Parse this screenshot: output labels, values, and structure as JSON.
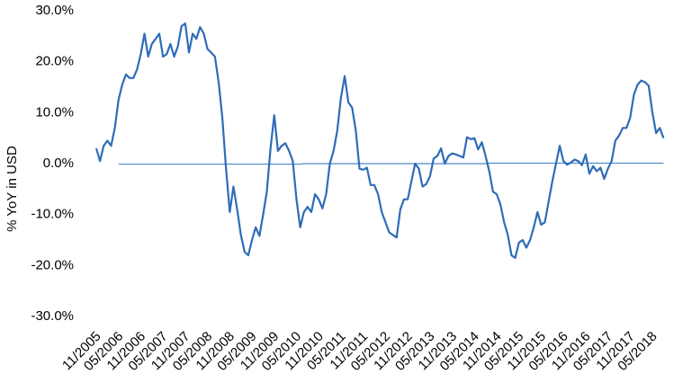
{
  "chart_data": {
    "type": "line",
    "y_label": "% YoY in USD",
    "categories": [
      "11/2005",
      null,
      null,
      null,
      null,
      null,
      "05/2006",
      null,
      null,
      null,
      null,
      null,
      "11/2006",
      null,
      null,
      null,
      null,
      null,
      "05/2007",
      null,
      null,
      null,
      null,
      null,
      "11/2007",
      null,
      null,
      null,
      null,
      null,
      "05/2008",
      null,
      null,
      null,
      null,
      null,
      "11/2008",
      null,
      null,
      null,
      null,
      null,
      "05/2009",
      null,
      null,
      null,
      null,
      null,
      "11/2009",
      null,
      null,
      null,
      null,
      null,
      "05/2010",
      null,
      null,
      null,
      null,
      null,
      "11/2010",
      null,
      null,
      null,
      null,
      null,
      "05/2011",
      null,
      null,
      null,
      null,
      null,
      "11/2011",
      null,
      null,
      null,
      null,
      null,
      "05/2012",
      null,
      null,
      null,
      null,
      null,
      "11/2012",
      null,
      null,
      null,
      null,
      null,
      "05/2013",
      null,
      null,
      null,
      null,
      null,
      "11/2013",
      null,
      null,
      null,
      null,
      null,
      "05/2014",
      null,
      null,
      null,
      null,
      null,
      "11/2014",
      null,
      null,
      null,
      null,
      null,
      "05/2015",
      null,
      null,
      null,
      null,
      null,
      "11/2015",
      null,
      null,
      null,
      null,
      null,
      "05/2016",
      null,
      null,
      null,
      null,
      null,
      "11/2016",
      null,
      null,
      null,
      null,
      null,
      "05/2017",
      null,
      null,
      null,
      null,
      null,
      "11/2017",
      null,
      null,
      null,
      null,
      null,
      "05/2018",
      null,
      null,
      null
    ],
    "series": [
      {
        "color": "#2e6cb8",
        "width": 2.2,
        "values": [
          3,
          0.5,
          3.5,
          4.5,
          3.5,
          7,
          12.5,
          15.5,
          17.5,
          16.8,
          16.8,
          18.5,
          21.5,
          25.5,
          21,
          23.5,
          24.5,
          25.5,
          21,
          21.5,
          23.5,
          21,
          23,
          27,
          27.5,
          21.8,
          25.5,
          24.5,
          26.8,
          25.5,
          22.5,
          21.8,
          21,
          16,
          9,
          -1,
          -9.5,
          -4.5,
          -9,
          -14,
          -17.3,
          -18,
          -15,
          -12.5,
          -14.2,
          -10,
          -5.5,
          3,
          9.5,
          2.5,
          3.5,
          4,
          2.5,
          0.5,
          -7,
          -12.5,
          -9.5,
          -8.5,
          -9.5,
          -6,
          -7,
          -8.8,
          -6,
          0,
          2.5,
          6.5,
          13,
          17.2,
          12,
          11,
          6.5,
          -1,
          -1.2,
          -0.8,
          -4.2,
          -4.2,
          -6,
          -9.5,
          -11.5,
          -13.5,
          -14,
          -14.5,
          -9,
          -7,
          -7,
          -3.5,
          0,
          -1,
          -4.5,
          -4,
          -2.5,
          1,
          1.5,
          3,
          0,
          1.5,
          2,
          1.8,
          1.5,
          1.2,
          5.2,
          4.8,
          5,
          2.8,
          4.2,
          1.5,
          -1.5,
          -5.5,
          -6,
          -8,
          -11.5,
          -14,
          -18,
          -18.5,
          -15.5,
          -15,
          -16.5,
          -15,
          -12.5,
          -9.5,
          -12,
          -11.5,
          -7.5,
          -3.5,
          0,
          3.5,
          0.5,
          -0.2,
          0.2,
          0.8,
          0.5,
          -0.3,
          1.8,
          -2,
          -0.5,
          -1.5,
          -0.8,
          -3,
          -1,
          0.5,
          4.5,
          5.5,
          7,
          7,
          9,
          13.5,
          15.5,
          16.3,
          16,
          15.3,
          10,
          6,
          7,
          5
        ]
      },
      {
        "color": "#4a86c8",
        "width": 1.2,
        "values": [
          null,
          null,
          null,
          null,
          null,
          null,
          -0.1,
          -0.1,
          -0.1,
          -0.1,
          -0.1,
          -0.1,
          -0.1,
          -0.1,
          -0.1,
          -0.1,
          -0.1,
          -0.1,
          -0.1,
          -0.1,
          -0.1,
          -0.1,
          -0.1,
          -0.1,
          -0.1,
          -0.1,
          -0.1,
          -0.1,
          -0.1,
          -0.1,
          -0.1,
          -0.1,
          -0.1,
          -0.1,
          -0.1,
          -0.1,
          -0.1,
          -0.1,
          -0.1,
          -0.1,
          -0.1,
          -0.1,
          -0.1,
          -0.1,
          -0.1,
          -0.1,
          -0.1,
          -0.1,
          -0.1,
          -0.1,
          -0.1,
          -0.1,
          -0.1,
          -0.1,
          -0.1,
          -0.1,
          0,
          0,
          0,
          0,
          0,
          0,
          0,
          0,
          0,
          0,
          0,
          0,
          0,
          0,
          0,
          0,
          0,
          0,
          0,
          0,
          0,
          0,
          0,
          0,
          0,
          0,
          0,
          0,
          0,
          0,
          0,
          0,
          0,
          0,
          0,
          0,
          0,
          0,
          0,
          0,
          0,
          0,
          0,
          0,
          0,
          0,
          0,
          0,
          0,
          0,
          0.1,
          0.1,
          0.1,
          0.1,
          0.1,
          0.1,
          0.1,
          0.1,
          0.1,
          0.1,
          0.1,
          0.1,
          0.1,
          0.1,
          0.1,
          0.1,
          0.1,
          0.1,
          0.1,
          0.1,
          0.1,
          0.1,
          0.1,
          0.1,
          0.1,
          0.1,
          0.1,
          0.1,
          0.1,
          0.1,
          0.1,
          0.1,
          0.1,
          0.1,
          0.1,
          0.1,
          0.1,
          0.1,
          0.1,
          0.1,
          0.1,
          0.1,
          0.1,
          0.1,
          0.1,
          0.1,
          0.1,
          0.1
        ]
      }
    ],
    "ylim": [
      -30,
      30
    ],
    "yticks": [
      {
        "value": -30,
        "label": "-30.0%"
      },
      {
        "value": -20,
        "label": "-20.0%"
      },
      {
        "value": -10,
        "label": "-10.0%"
      },
      {
        "value": 0,
        "label": "0.0%"
      },
      {
        "value": 10,
        "label": "10.0%"
      },
      {
        "value": 20,
        "label": "20.0%"
      },
      {
        "value": 30,
        "label": "30.0%"
      }
    ],
    "grid": false
  }
}
